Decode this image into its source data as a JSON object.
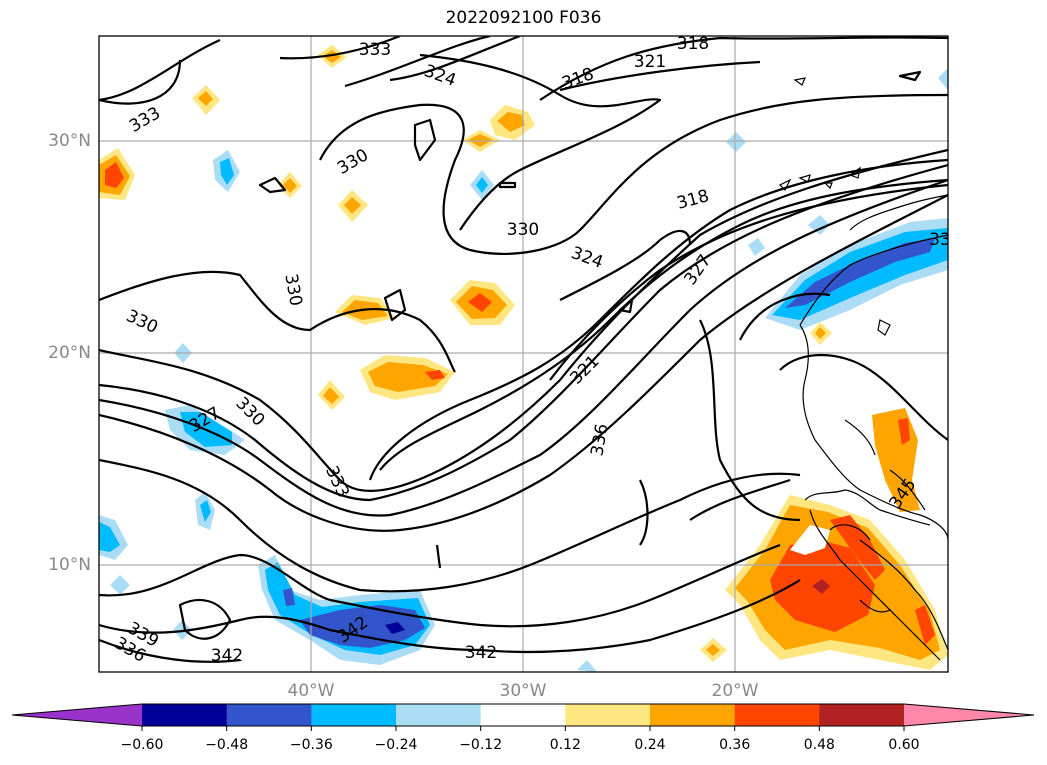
{
  "title": "2022092100 F036",
  "map": {
    "lat_labels": [
      "30°N",
      "20°N",
      "10°N"
    ],
    "lon_labels": [
      "40°W",
      "30°W",
      "20°W"
    ],
    "contour_labels": [
      {
        "text": "333"
      },
      {
        "text": "318"
      },
      {
        "text": "324"
      },
      {
        "text": "318"
      },
      {
        "text": "321"
      },
      {
        "text": "333"
      },
      {
        "text": "330"
      },
      {
        "text": "318"
      },
      {
        "text": "330"
      },
      {
        "text": "324"
      },
      {
        "text": "327"
      },
      {
        "text": "330"
      },
      {
        "text": "330"
      },
      {
        "text": "321"
      },
      {
        "text": "330"
      },
      {
        "text": "327"
      },
      {
        "text": "336"
      },
      {
        "text": "333"
      },
      {
        "text": "339"
      },
      {
        "text": "336"
      },
      {
        "text": "342"
      },
      {
        "text": "342"
      },
      {
        "text": "342"
      },
      {
        "text": "345"
      },
      {
        "text": "33"
      }
    ]
  },
  "colorbar": {
    "ticks": [
      "−0.60",
      "−0.48",
      "−0.36",
      "−0.24",
      "−0.12",
      "0.12",
      "0.24",
      "0.36",
      "0.48",
      "0.60"
    ],
    "colors": [
      "#9933cc",
      "#000099",
      "#3355cc",
      "#00bbff",
      "#aaddf5",
      "#ffffff",
      "#ffe680",
      "#ffa500",
      "#ff4500",
      "#b22222",
      "#ff88aa"
    ]
  }
}
